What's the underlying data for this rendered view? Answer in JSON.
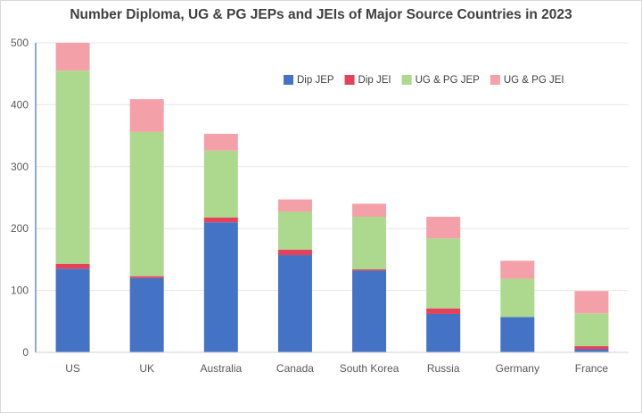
{
  "chart_data": {
    "type": "bar",
    "stacked": true,
    "title": "Number Diploma, UG & PG JEPs and JEIs of Major Source Countries in 2023",
    "xlabel": "",
    "ylabel": "",
    "ylim": [
      0,
      500
    ],
    "yticks": [
      0,
      100,
      200,
      300,
      400,
      500
    ],
    "grid": true,
    "legend_position": "top-right",
    "categories": [
      "US",
      "UK",
      "Australia",
      "Canada",
      "South Korea",
      "Russia",
      "Germany",
      "France"
    ],
    "series": [
      {
        "name": "Dip JEP",
        "color": "#4472c4",
        "values": [
          135,
          120,
          210,
          157,
          132,
          62,
          57,
          5
        ]
      },
      {
        "name": "Dip JEI",
        "color": "#e3425b",
        "values": [
          8,
          3,
          8,
          9,
          2,
          9,
          0,
          5
        ]
      },
      {
        "name": "UG & PG JEP",
        "color": "#acd98d",
        "values": [
          312,
          233,
          108,
          61,
          85,
          113,
          62,
          53
        ]
      },
      {
        "name": "UG & PG JEI",
        "color": "#f4a0a8",
        "values": [
          45,
          53,
          27,
          20,
          21,
          35,
          29,
          36
        ]
      }
    ]
  }
}
